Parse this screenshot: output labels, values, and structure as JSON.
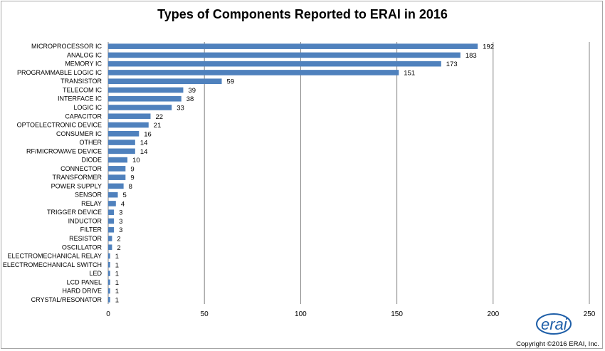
{
  "chart_data": {
    "type": "bar",
    "orientation": "horizontal",
    "title": "Types of Components Reported to ERAI in 2016",
    "categories": [
      "MICROPROCESSOR IC",
      "ANALOG IC",
      "MEMORY IC",
      "PROGRAMMABLE LOGIC IC",
      "TRANSISTOR",
      "TELECOM IC",
      "INTERFACE IC",
      "LOGIC IC",
      "CAPACITOR",
      "OPTOELECTRONIC DEVICE",
      "CONSUMER IC",
      "OTHER",
      "RF/MICROWAVE DEVICE",
      "DIODE",
      "CONNECTOR",
      "TRANSFORMER",
      "POWER SUPPLY",
      "SENSOR",
      "RELAY",
      "TRIGGER DEVICE",
      "INDUCTOR",
      "FILTER",
      "RESISTOR",
      "OSCILLATOR",
      "ELECTROMECHANICAL RELAY",
      "ELECTROMECHANICAL SWITCH",
      "LED",
      "LCD PANEL",
      "HARD DRIVE",
      "CRYSTAL/RESONATOR"
    ],
    "values": [
      192,
      183,
      173,
      151,
      59,
      39,
      38,
      33,
      22,
      21,
      16,
      14,
      14,
      10,
      9,
      9,
      8,
      5,
      4,
      3,
      3,
      3,
      2,
      2,
      1,
      1,
      1,
      1,
      1,
      1
    ],
    "xlim": [
      0,
      250
    ],
    "xticks": [
      0,
      50,
      100,
      150,
      200,
      250
    ],
    "xlabel": "",
    "ylabel": "",
    "grid": "vertical",
    "bar_color": "#4f81bd",
    "grid_color": "#868686"
  },
  "footer": {
    "logo_text": "erai",
    "copyright": "Copyright ©2016 ERAI, Inc."
  }
}
